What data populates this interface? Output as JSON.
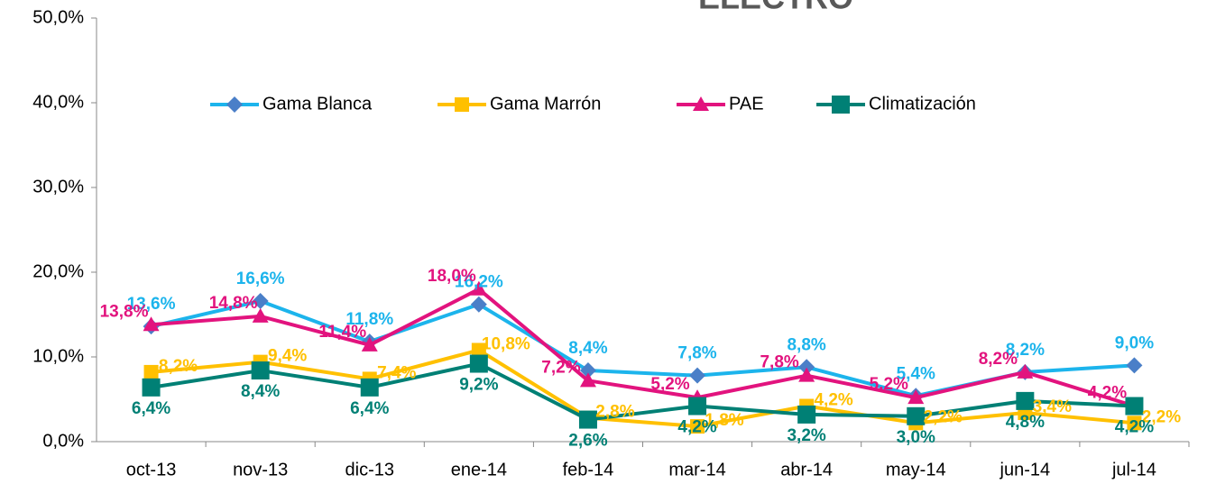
{
  "chart_data": {
    "type": "line",
    "title": "ELECTRO",
    "categories": [
      "oct-13",
      "nov-13",
      "dic-13",
      "ene-14",
      "feb-14",
      "mar-14",
      "abr-14",
      "may-14",
      "jun-14",
      "jul-14"
    ],
    "ylim": [
      0,
      50
    ],
    "yticks": [
      {
        "value": 0,
        "label": "0,0%"
      },
      {
        "value": 10,
        "label": "10,0%"
      },
      {
        "value": 20,
        "label": "20,0%"
      },
      {
        "value": 30,
        "label": "30,0%"
      },
      {
        "value": 40,
        "label": "40,0%"
      },
      {
        "value": 50,
        "label": "50,0%"
      }
    ],
    "grid": false,
    "legend": "top",
    "series": [
      {
        "name": "Gama Blanca",
        "color": "#1cb4ec",
        "marker_color": "#4a7fc8",
        "values": [
          13.6,
          16.6,
          11.8,
          16.2,
          8.4,
          7.8,
          8.8,
          5.4,
          8.2,
          9.0
        ],
        "value_labels": [
          "13,6%",
          "16,6%",
          "11,8%",
          "16,2%",
          "8,4%",
          "7,8%",
          "8,8%",
          "5,4%",
          "8,2%",
          "9,0%"
        ]
      },
      {
        "name": "Gama Marrón",
        "color": "#ffc000",
        "marker_color": "#ffc000",
        "values": [
          8.2,
          9.4,
          7.4,
          10.8,
          2.8,
          1.8,
          4.2,
          2.2,
          3.4,
          2.2
        ],
        "value_labels": [
          "8,2%",
          "9,4%",
          "7,4%",
          "10,8%",
          "2,8%",
          "1,8%",
          "4,2%",
          "2,2%",
          "3,4%",
          "2,2%"
        ]
      },
      {
        "name": "PAE",
        "color": "#e2137e",
        "marker_color": "#e2137e",
        "values": [
          13.8,
          14.8,
          11.4,
          18.0,
          7.2,
          5.2,
          7.8,
          5.2,
          8.2,
          4.2
        ],
        "value_labels": [
          "13,8%",
          "14,8%",
          "11,4%",
          "18,0%",
          "7,2%",
          "5,2%",
          "7,8%",
          "5,2%",
          "8,2%",
          "4,2%"
        ]
      },
      {
        "name": "Climatización",
        "color": "#008075",
        "marker_color": "#008075",
        "values": [
          6.4,
          8.4,
          6.4,
          9.2,
          2.6,
          4.2,
          3.2,
          3.0,
          4.8,
          4.2
        ],
        "value_labels": [
          "6,4%",
          "8,4%",
          "6,4%",
          "9,2%",
          "2,6%",
          "4,2%",
          "3,2%",
          "3,0%",
          "4,8%",
          "4,2%"
        ]
      }
    ]
  }
}
